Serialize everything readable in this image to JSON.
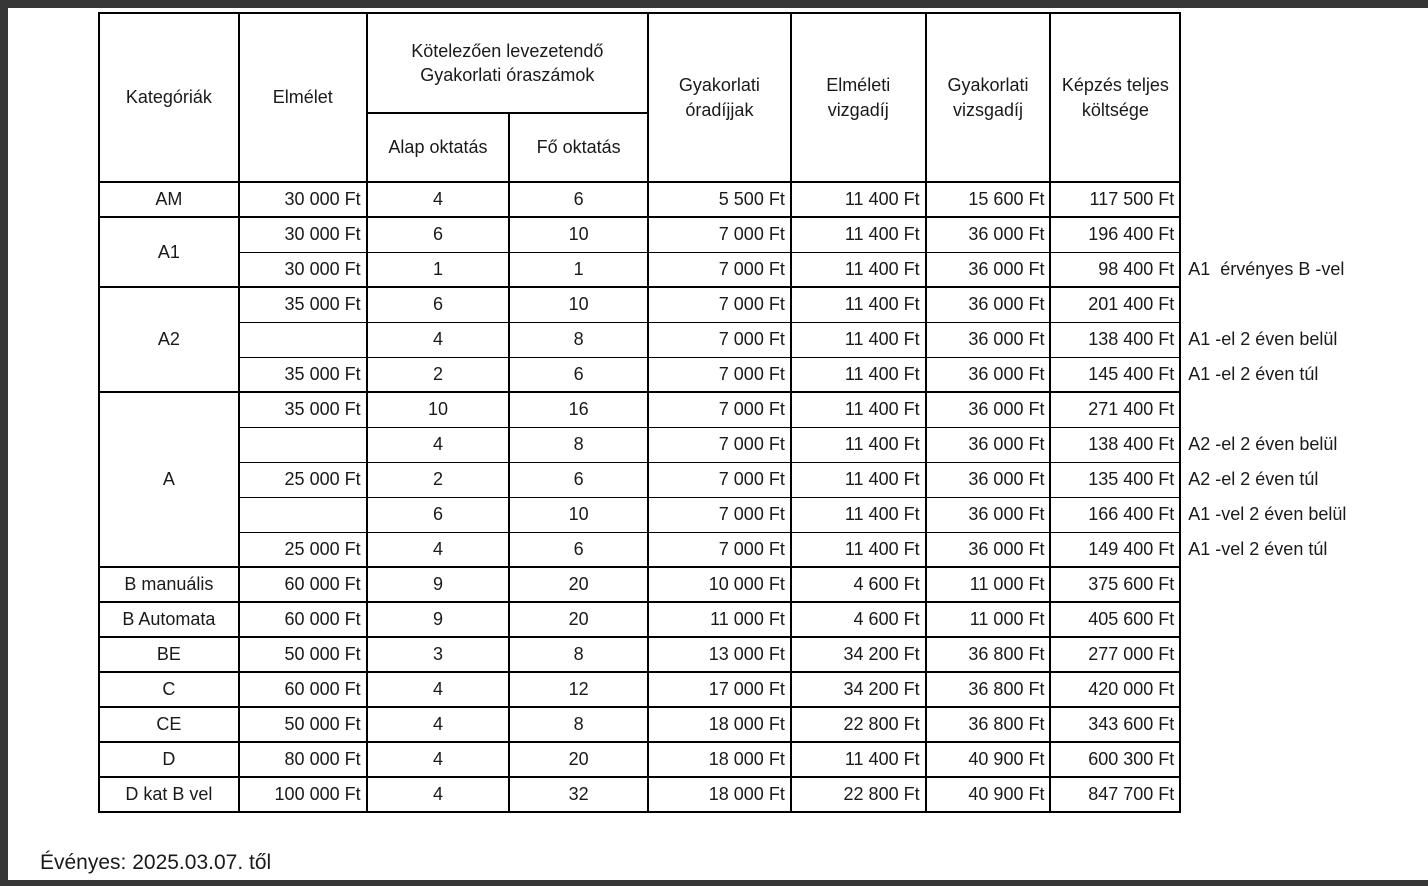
{
  "table": {
    "headers": {
      "kategoriak": "Kategóriák",
      "elmelet": "Elmélet",
      "gyakorlati_oraszamok": "Kötelezően levezetendő Gyakorlati óraszámok",
      "alap_oktatas": "Alap oktatás",
      "fo_oktatas": "Fő oktatás",
      "gyakorlati_oradijjak": "Gyakorlati óradíjjak",
      "elmeleti_vizgadij": "Elméleti vizgadíj",
      "gyakorlati_vizsgadij": "Gyakorlati vizsgadíj",
      "kepzes_teljes_koltsege": "Képzés teljes költsége"
    },
    "groups": [
      {
        "category": "AM",
        "rows": [
          {
            "elmelet": "30 000 Ft",
            "alap": "4",
            "fo": "6",
            "oradij": "5 500 Ft",
            "vizsga_elm": "11 400 Ft",
            "vizsga_gyak": "15 600 Ft",
            "teljes": "117 500 Ft",
            "note": ""
          }
        ]
      },
      {
        "category": "A1",
        "rows": [
          {
            "elmelet": "30 000 Ft",
            "alap": "6",
            "fo": "10",
            "oradij": "7 000 Ft",
            "vizsga_elm": "11 400 Ft",
            "vizsga_gyak": "36 000 Ft",
            "teljes": "196 400 Ft",
            "note": ""
          },
          {
            "elmelet": "30 000 Ft",
            "alap": "1",
            "fo": "1",
            "oradij": "7 000 Ft",
            "vizsga_elm": "11 400 Ft",
            "vizsga_gyak": "36 000 Ft",
            "teljes": "98 400 Ft",
            "note": "A1  érvényes B -vel"
          }
        ]
      },
      {
        "category": "A2",
        "rows": [
          {
            "elmelet": "35 000 Ft",
            "alap": "6",
            "fo": "10",
            "oradij": "7 000 Ft",
            "vizsga_elm": "11 400 Ft",
            "vizsga_gyak": "36 000 Ft",
            "teljes": "201 400 Ft",
            "note": ""
          },
          {
            "elmelet": "",
            "alap": "4",
            "fo": "8",
            "oradij": "7 000 Ft",
            "vizsga_elm": "11 400 Ft",
            "vizsga_gyak": "36 000 Ft",
            "teljes": "138 400 Ft",
            "note": "A1 -el 2 éven belül"
          },
          {
            "elmelet": "35 000 Ft",
            "alap": "2",
            "fo": "6",
            "oradij": "7 000 Ft",
            "vizsga_elm": "11 400 Ft",
            "vizsga_gyak": "36 000 Ft",
            "teljes": "145 400 Ft",
            "note": "A1 -el 2 éven túl"
          }
        ]
      },
      {
        "category": "A",
        "rows": [
          {
            "elmelet": "35 000 Ft",
            "alap": "10",
            "fo": "16",
            "oradij": "7 000 Ft",
            "vizsga_elm": "11 400 Ft",
            "vizsga_gyak": "36 000 Ft",
            "teljes": "271 400 Ft",
            "note": ""
          },
          {
            "elmelet": "",
            "alap": "4",
            "fo": "8",
            "oradij": "7 000 Ft",
            "vizsga_elm": "11 400 Ft",
            "vizsga_gyak": "36 000 Ft",
            "teljes": "138 400 Ft",
            "note": "A2 -el 2 éven belül"
          },
          {
            "elmelet": "25 000 Ft",
            "alap": "2",
            "fo": "6",
            "oradij": "7 000 Ft",
            "vizsga_elm": "11 400 Ft",
            "vizsga_gyak": "36 000 Ft",
            "teljes": "135 400 Ft",
            "note": "A2 -el 2 éven túl"
          },
          {
            "elmelet": "",
            "alap": "6",
            "fo": "10",
            "oradij": "7 000 Ft",
            "vizsga_elm": "11 400 Ft",
            "vizsga_gyak": "36 000 Ft",
            "teljes": "166 400 Ft",
            "note": "A1 -vel 2 éven belül"
          },
          {
            "elmelet": "25 000 Ft",
            "alap": "4",
            "fo": "6",
            "oradij": "7 000 Ft",
            "vizsga_elm": "11 400 Ft",
            "vizsga_gyak": "36 000 Ft",
            "teljes": "149 400 Ft",
            "note": "A1 -vel 2 éven túl"
          }
        ]
      },
      {
        "category": "B manuális",
        "rows": [
          {
            "elmelet": "60 000 Ft",
            "alap": "9",
            "fo": "20",
            "oradij": "10 000 Ft",
            "vizsga_elm": "4 600 Ft",
            "vizsga_gyak": "11 000 Ft",
            "teljes": "375 600 Ft",
            "note": ""
          }
        ]
      },
      {
        "category": "B Automata",
        "rows": [
          {
            "elmelet": "60 000 Ft",
            "alap": "9",
            "fo": "20",
            "oradij": "11 000 Ft",
            "vizsga_elm": "4 600 Ft",
            "vizsga_gyak": "11 000 Ft",
            "teljes": "405 600 Ft",
            "note": ""
          }
        ]
      },
      {
        "category": "BE",
        "rows": [
          {
            "elmelet": "50 000 Ft",
            "alap": "3",
            "fo": "8",
            "oradij": "13 000 Ft",
            "vizsga_elm": "34 200 Ft",
            "vizsga_gyak": "36 800 Ft",
            "teljes": "277 000 Ft",
            "note": ""
          }
        ]
      },
      {
        "category": "C",
        "rows": [
          {
            "elmelet": "60 000 Ft",
            "alap": "4",
            "fo": "12",
            "oradij": "17 000 Ft",
            "vizsga_elm": "34 200 Ft",
            "vizsga_gyak": "36 800 Ft",
            "teljes": "420 000 Ft",
            "note": ""
          }
        ]
      },
      {
        "category": "CE",
        "rows": [
          {
            "elmelet": "50 000 Ft",
            "alap": "4",
            "fo": "8",
            "oradij": "18 000 Ft",
            "vizsga_elm": "22 800 Ft",
            "vizsga_gyak": "36 800 Ft",
            "teljes": "343 600 Ft",
            "note": ""
          }
        ]
      },
      {
        "category": "D",
        "rows": [
          {
            "elmelet": "80 000 Ft",
            "alap": "4",
            "fo": "20",
            "oradij": "18 000 Ft",
            "vizsga_elm": "11 400 Ft",
            "vizsga_gyak": "40 900 Ft",
            "teljes": "600 300 Ft",
            "note": ""
          }
        ]
      },
      {
        "category": "D kat B vel",
        "rows": [
          {
            "elmelet": "100 000 Ft",
            "alap": "4",
            "fo": "32",
            "oradij": "18 000 Ft",
            "vizsga_elm": "22 800 Ft",
            "vizsga_gyak": "40 900 Ft",
            "teljes": "847 700 Ft",
            "note": ""
          }
        ]
      }
    ]
  },
  "footer": {
    "valid_from": "Évényes: 2025.03.07. től"
  }
}
